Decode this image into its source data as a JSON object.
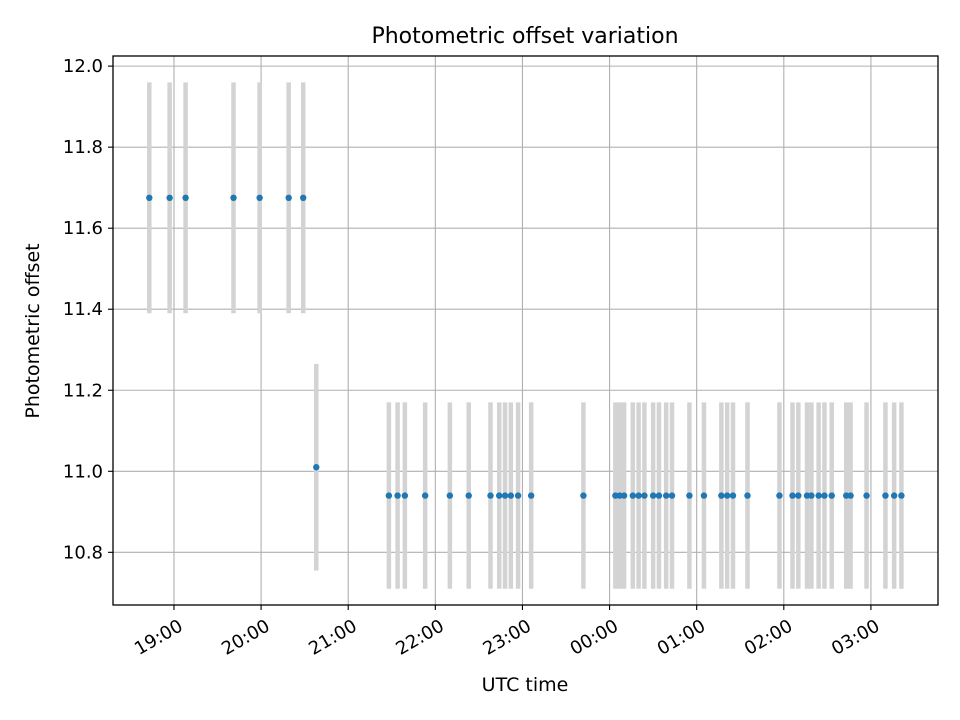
{
  "chart_data": {
    "type": "scatter",
    "title": "Photometric offset variation",
    "xlabel": "UTC time",
    "ylabel": "Photometric offset",
    "grid": true,
    "xtick_labels": [
      "19:00",
      "20:00",
      "21:00",
      "22:00",
      "23:00",
      "00:00",
      "01:00",
      "02:00",
      "03:00"
    ],
    "xtick_hours": [
      19,
      20,
      21,
      22,
      23,
      24,
      25,
      26,
      27
    ],
    "xlim_hours": [
      18.3,
      27.77
    ],
    "ylim": [
      10.67,
      12.025
    ],
    "yticks": [
      10.8,
      11.0,
      11.2,
      11.4,
      11.6,
      11.8,
      12.0
    ],
    "yerror_color": "#d3d3d3",
    "point_color": "#1f77b4",
    "series": [
      {
        "x": [
          "18:43",
          "18:57",
          "19:08",
          "19:41",
          "19:59",
          "20:19",
          "20:29"
        ],
        "y": [
          11.675,
          11.675,
          11.675,
          11.675,
          11.675,
          11.675,
          11.675
        ],
        "yerr": 0.285
      },
      {
        "x": [
          "20:38"
        ],
        "y": [
          11.01
        ],
        "yerr": 0.255
      },
      {
        "x": [
          "21:28",
          "21:34",
          "21:39",
          "21:53",
          "22:10",
          "22:23",
          "22:38",
          "22:44",
          "22:48",
          "22:52",
          "22:57",
          "23:06",
          "23:42",
          "00:04",
          "00:07",
          "00:10",
          "00:16",
          "00:20",
          "00:24",
          "00:30",
          "00:34",
          "00:39",
          "00:43",
          "00:55",
          "01:05",
          "01:17",
          "01:21",
          "01:25",
          "01:35",
          "01:57",
          "02:06",
          "02:10",
          "02:16",
          "02:19",
          "02:24",
          "02:28",
          "02:33",
          "02:43",
          "02:46",
          "02:57",
          "03:10",
          "03:16",
          "03:21"
        ],
        "y": [
          10.94,
          10.94,
          10.94,
          10.94,
          10.94,
          10.94,
          10.94,
          10.94,
          10.94,
          10.94,
          10.94,
          10.94,
          10.94,
          10.94,
          10.94,
          10.94,
          10.94,
          10.94,
          10.94,
          10.94,
          10.94,
          10.94,
          10.94,
          10.94,
          10.94,
          10.94,
          10.94,
          10.94,
          10.94,
          10.94,
          10.94,
          10.94,
          10.94,
          10.94,
          10.94,
          10.94,
          10.94,
          10.94,
          10.94,
          10.94,
          10.94,
          10.94,
          10.94
        ],
        "yerr": 0.23
      }
    ]
  }
}
